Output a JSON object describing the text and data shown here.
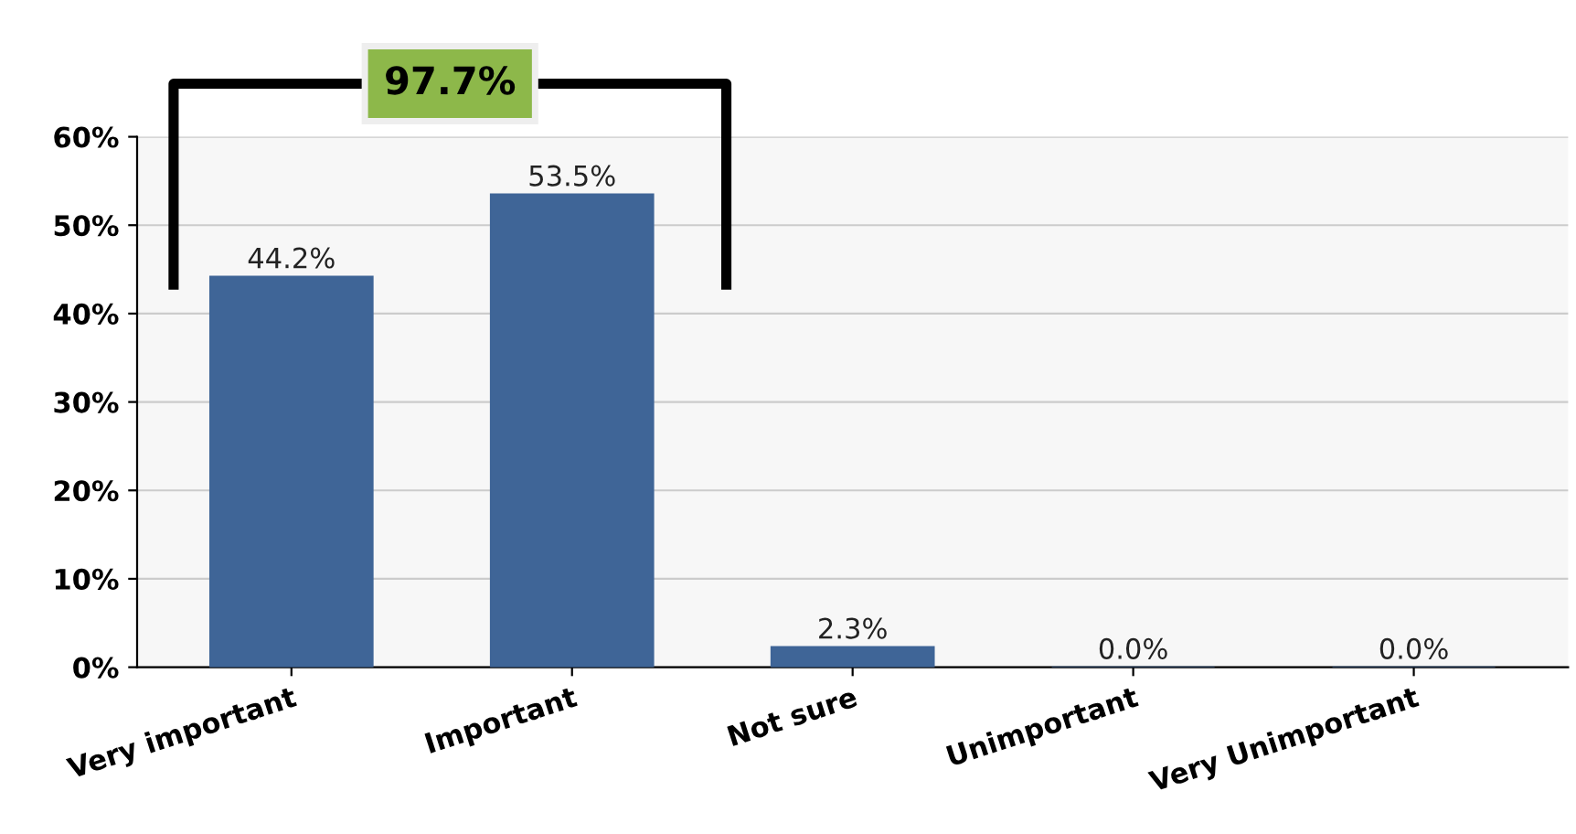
{
  "chart_data": {
    "type": "bar",
    "categories": [
      "Very important",
      "Important",
      "Not sure",
      "Unimportant",
      "Very Unimportant"
    ],
    "values": [
      44.2,
      53.5,
      2.3,
      0.0,
      0.0
    ],
    "value_labels": [
      "44.2%",
      "53.5%",
      "2.3%",
      "0.0%",
      "0.0%"
    ],
    "color": "#3f6597",
    "ylim": [
      0,
      60
    ],
    "yticks": [
      {
        "value": 0,
        "label": "0%"
      },
      {
        "value": 10,
        "label": "10%"
      },
      {
        "value": 20,
        "label": "20%"
      },
      {
        "value": 30,
        "label": "30%"
      },
      {
        "value": 40,
        "label": "40%"
      },
      {
        "value": 50,
        "label": "50%"
      },
      {
        "value": 60,
        "label": "60%"
      }
    ],
    "grid": "y",
    "annotations": [
      "97.7%"
    ]
  }
}
